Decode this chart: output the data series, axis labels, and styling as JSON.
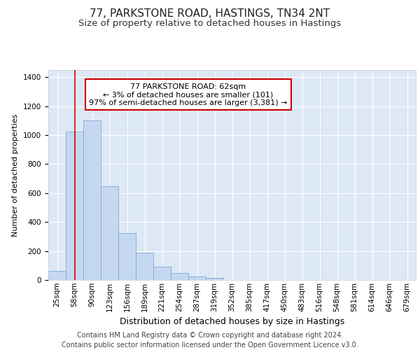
{
  "title1": "77, PARKSTONE ROAD, HASTINGS, TN34 2NT",
  "title2": "Size of property relative to detached houses in Hastings",
  "xlabel": "Distribution of detached houses by size in Hastings",
  "ylabel": "Number of detached properties",
  "bar_labels": [
    "25sqm",
    "58sqm",
    "90sqm",
    "123sqm",
    "156sqm",
    "189sqm",
    "221sqm",
    "254sqm",
    "287sqm",
    "319sqm",
    "352sqm",
    "385sqm",
    "417sqm",
    "450sqm",
    "483sqm",
    "516sqm",
    "548sqm",
    "581sqm",
    "614sqm",
    "646sqm",
    "679sqm"
  ],
  "bar_heights": [
    65,
    1025,
    1100,
    650,
    325,
    190,
    90,
    50,
    25,
    15,
    0,
    0,
    0,
    0,
    0,
    0,
    0,
    0,
    0,
    0,
    0
  ],
  "bar_color": "#c5d8f0",
  "bar_edge_color": "#7aadd4",
  "annotation_text_line1": "77 PARKSTONE ROAD: 62sqm",
  "annotation_text_line2": "← 3% of detached houses are smaller (101)",
  "annotation_text_line3": "97% of semi-detached houses are larger (3,381) →",
  "annotation_box_color": "#ffffff",
  "annotation_box_edge": "#cc0000",
  "vline_color": "#cc0000",
  "ylim": [
    0,
    1450
  ],
  "yticks": [
    0,
    200,
    400,
    600,
    800,
    1000,
    1200,
    1400
  ],
  "plot_bg_color": "#dde8f5",
  "grid_color": "#ffffff",
  "title1_fontsize": 11,
  "title2_fontsize": 9.5,
  "xlabel_fontsize": 9,
  "ylabel_fontsize": 8,
  "tick_fontsize": 7.5,
  "footer_fontsize": 7,
  "footer_line1": "Contains HM Land Registry data © Crown copyright and database right 2024.",
  "footer_line2": "Contains public sector information licensed under the Open Government Licence v3.0."
}
